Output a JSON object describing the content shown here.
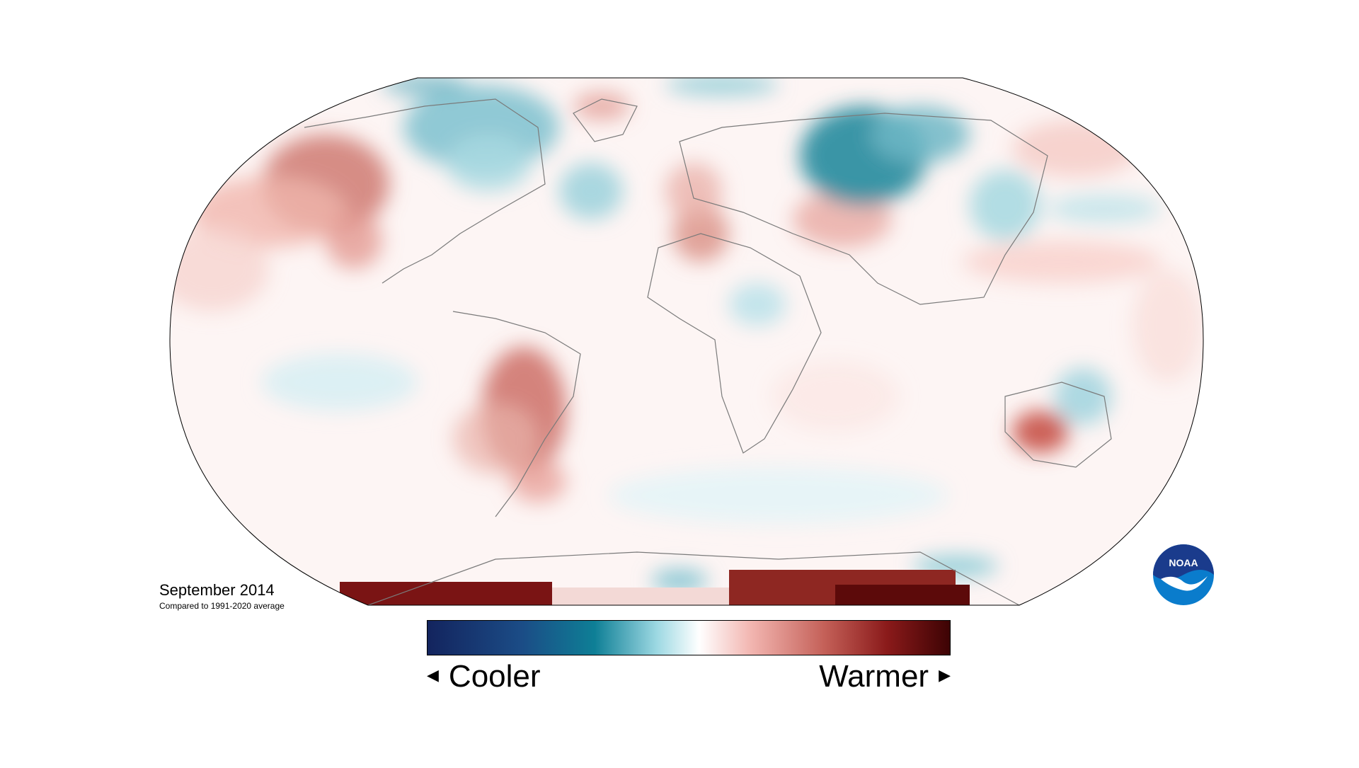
{
  "map": {
    "title": "September 2014",
    "subtitle": "Compared to 1991-2020 average"
  },
  "legend": {
    "cooler_label": "Cooler",
    "warmer_label": "Warmer",
    "gradient_colors": [
      "#13245e",
      "#1b4c86",
      "#0e7f96",
      "#9ed9e3",
      "#ffffff",
      "#f2b5b0",
      "#c46058",
      "#8a1a1a",
      "#3d0304"
    ]
  },
  "logo": {
    "text": "NOAA",
    "colors": {
      "top": "#1a3b8c",
      "bottom": "#0a7ccc",
      "bird": "#ffffff"
    }
  },
  "colors": {
    "cooler": "#1b8a9c",
    "warmer": "#c0564e",
    "neutral": "#ffffff",
    "coastline": "#7a7a7a"
  }
}
